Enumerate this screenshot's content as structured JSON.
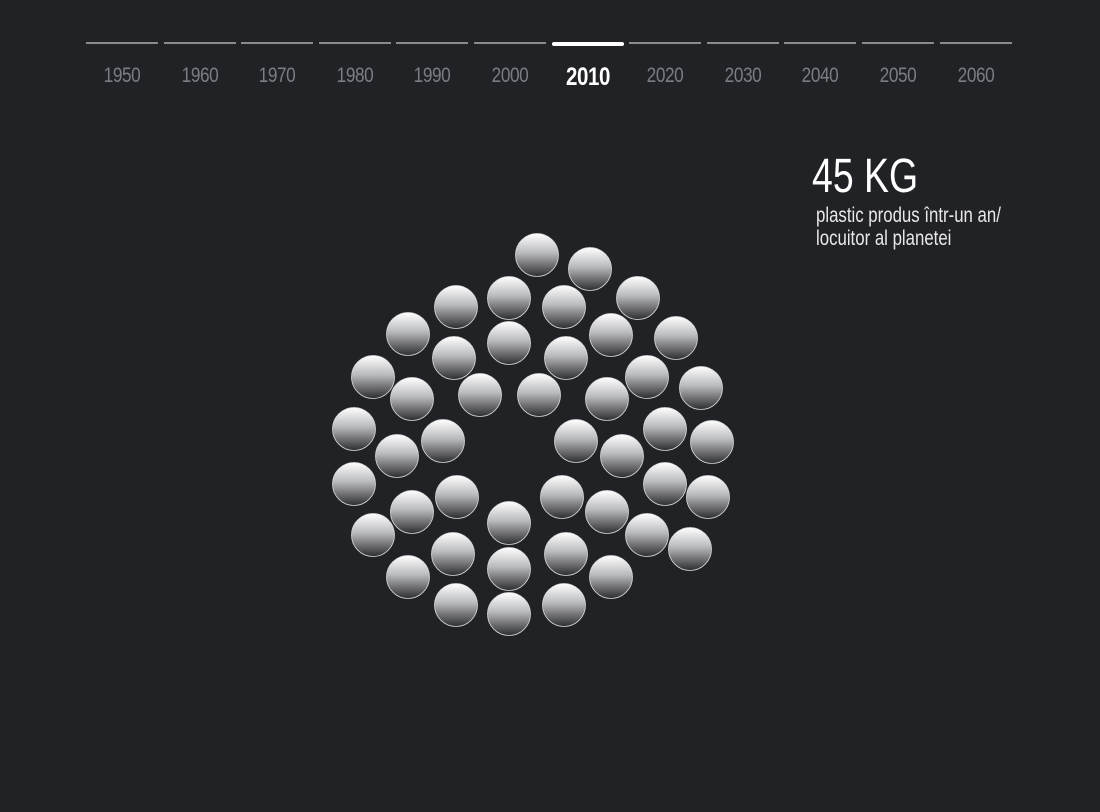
{
  "timeline": {
    "years": [
      "1950",
      "1960",
      "1970",
      "1980",
      "1990",
      "2000",
      "2010",
      "2020",
      "2030",
      "2040",
      "2050",
      "2060"
    ],
    "selected": "2010"
  },
  "stat": {
    "value": "45 KG",
    "description_line1": "plastic produs într-un an/",
    "description_line2": "locuitor al planetei"
  },
  "visualization": {
    "bubble_count": 45,
    "bubble_style": "grey-gradient-sphere",
    "colors": {
      "background": "#212226",
      "bubble_top": "#ffffff",
      "bubble_bottom": "#2a2b2f",
      "active_text": "#ffffff",
      "inactive_text": "#7c7d82"
    }
  }
}
